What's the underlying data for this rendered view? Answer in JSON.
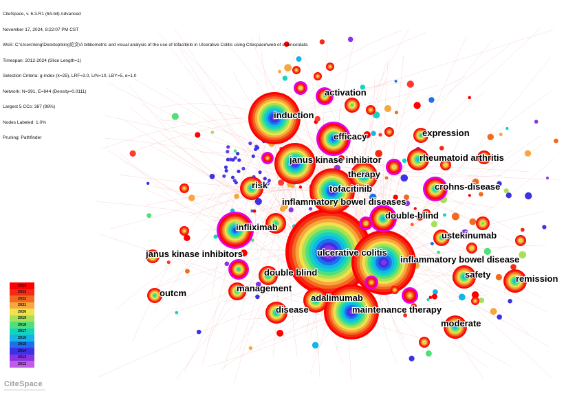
{
  "header": {
    "lines": [
      "CiteSpace, v. 6.3.R1 (64-bit) Advanced",
      "November 17, 2024, 8:22:07 PM CST",
      "WoS: C:\\Users\\king\\Desktop\\king论文\\A bibliometric and visual analysis of the use of tofacitinib in Ulcerative Colitis using Citespace\\web of science\\data",
      "Timespan: 2012-2024 (Slice Length=1)",
      "Selection Criteria: g-index (k=25), LRF=3.0, L/N=10, LBY=5, e=1.0",
      "Network: N=391, E=844 (Density=0.0111)",
      "Largest 5 CCs: 387 (98%)",
      "Nodes Labeled: 1.0%",
      "Pruning: Pathfinder"
    ]
  },
  "keywords": [
    {
      "label": "activation"
    },
    {
      "label": "induction"
    },
    {
      "label": "efficacy"
    },
    {
      "label": "expression"
    },
    {
      "label": "janus kinase inhibitor"
    },
    {
      "label": "rheumatoid arthritis"
    },
    {
      "label": "therapy"
    },
    {
      "label": "risk"
    },
    {
      "label": "tofacitinib"
    },
    {
      "label": "crohns-disease"
    },
    {
      "label": "inflammatory bowel diseases"
    },
    {
      "label": "double-blind"
    },
    {
      "label": "infliximab"
    },
    {
      "label": "ustekinumab"
    },
    {
      "label": "ulcerative colitis"
    },
    {
      "label": "janus kinase inhibitors"
    },
    {
      "label": "inflammatory bowel disease"
    },
    {
      "label": "double blind"
    },
    {
      "label": "safety"
    },
    {
      "label": "remission"
    },
    {
      "label": "management"
    },
    {
      "label": "outcm"
    },
    {
      "label": "adalimumab"
    },
    {
      "label": "disease"
    },
    {
      "label": "maintenance therapy"
    },
    {
      "label": "moderate"
    }
  ],
  "legend": {
    "years": [
      {
        "year": "2024",
        "color": "#ff0000"
      },
      {
        "year": "2023",
        "color": "#f42a14"
      },
      {
        "year": "2022",
        "color": "#f26a1e"
      },
      {
        "year": "2021",
        "color": "#f8a640"
      },
      {
        "year": "2020",
        "color": "#f2e24a"
      },
      {
        "year": "2019",
        "color": "#a8e05a"
      },
      {
        "year": "2018",
        "color": "#50e07a"
      },
      {
        "year": "2017",
        "color": "#14d4c0"
      },
      {
        "year": "2016",
        "color": "#14b4e6"
      },
      {
        "year": "2015",
        "color": "#1c70ee"
      },
      {
        "year": "2014",
        "color": "#3c32e4"
      },
      {
        "year": "2013",
        "color": "#8a32e4"
      },
      {
        "year": "2012",
        "color": "#c05ce8"
      }
    ]
  },
  "logo": {
    "text": "CiteSpace"
  },
  "colors": {
    "burst_ring": "#e600e6",
    "edge": "#f5b2b2",
    "node_core": "#ff0000"
  }
}
